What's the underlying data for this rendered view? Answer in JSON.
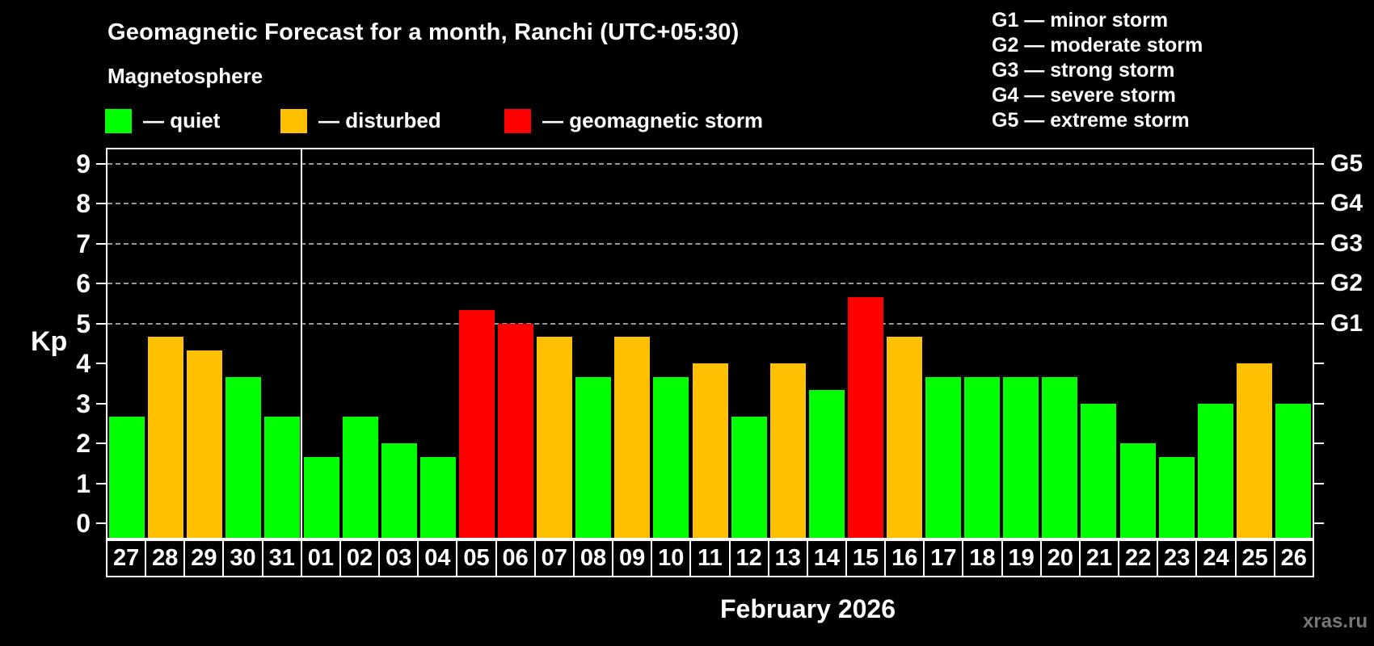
{
  "header": {
    "title": "Geomagnetic Forecast for a month, Ranchi (UTC+05:30)",
    "subtitle": "Magnetosphere"
  },
  "legend": {
    "quiet_label": "— quiet",
    "disturbed_label": "— disturbed",
    "storm_label": "— geomagnetic storm"
  },
  "g_legend": {
    "line1": "G1 — minor storm",
    "line2": "G2 — moderate storm",
    "line3": "G3 — strong storm",
    "line4": "G4 — severe storm",
    "line5": "G5 — extreme storm"
  },
  "axis": {
    "kp_label": "Kp",
    "y_ticks": [
      "0",
      "1",
      "2",
      "3",
      "4",
      "5",
      "6",
      "7",
      "8",
      "9"
    ],
    "right_labels": [
      {
        "kp": 5,
        "label": "G1"
      },
      {
        "kp": 6,
        "label": "G2"
      },
      {
        "kp": 7,
        "label": "G3"
      },
      {
        "kp": 8,
        "label": "G4"
      },
      {
        "kp": 9,
        "label": "G5"
      }
    ]
  },
  "x_axis_label": "February 2026",
  "watermark": "xras.ru",
  "colors": {
    "background": "#000000",
    "quiet": "#00ff00",
    "disturbed": "#ffc000",
    "storm": "#ff0000",
    "grid": "#999999",
    "axis": "#ffffff",
    "watermark": "#777777"
  },
  "chart_data": {
    "type": "bar",
    "title": "Geomagnetic Forecast for a month, Ranchi (UTC+05:30)",
    "subtitle": "Magnetosphere",
    "ylabel": "Kp",
    "xlabel": "February 2026",
    "ylim": [
      0,
      9
    ],
    "plot_range": [
      -0.4,
      9.4
    ],
    "grid": "dashed horizontal at Kp 5-9",
    "gridlines_at": [
      5,
      6,
      7,
      8,
      9
    ],
    "legend_position": "top-left",
    "month_separator_after_index": 4,
    "categories": [
      "27",
      "28",
      "29",
      "30",
      "31",
      "01",
      "02",
      "03",
      "04",
      "05",
      "06",
      "07",
      "08",
      "09",
      "10",
      "11",
      "12",
      "13",
      "14",
      "15",
      "16",
      "17",
      "18",
      "19",
      "20",
      "21",
      "22",
      "23",
      "24",
      "25",
      "26"
    ],
    "values": [
      2.67,
      4.67,
      4.33,
      3.67,
      2.67,
      1.67,
      2.67,
      2.0,
      1.67,
      5.33,
      5.0,
      4.67,
      3.67,
      4.67,
      3.67,
      4.0,
      2.67,
      4.0,
      3.33,
      5.67,
      4.67,
      3.67,
      3.67,
      3.67,
      3.67,
      3.0,
      2.0,
      1.67,
      3.0,
      4.0,
      3.0
    ],
    "statuses": [
      "quiet",
      "disturbed",
      "disturbed",
      "quiet",
      "quiet",
      "quiet",
      "quiet",
      "quiet",
      "quiet",
      "storm",
      "storm",
      "disturbed",
      "quiet",
      "disturbed",
      "quiet",
      "disturbed",
      "quiet",
      "disturbed",
      "quiet",
      "storm",
      "disturbed",
      "quiet",
      "quiet",
      "quiet",
      "quiet",
      "quiet",
      "quiet",
      "quiet",
      "quiet",
      "disturbed",
      "quiet"
    ]
  }
}
